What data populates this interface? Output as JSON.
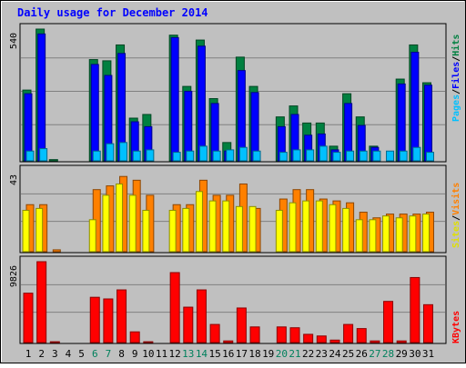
{
  "chart_data": [
    {
      "type": "bar",
      "title": "Daily usage for December 2014",
      "panel": "hits",
      "x": [
        1,
        2,
        3,
        4,
        5,
        6,
        7,
        8,
        9,
        10,
        11,
        12,
        13,
        14,
        15,
        16,
        17,
        18,
        19,
        20,
        21,
        22,
        23,
        24,
        25,
        26,
        27,
        28,
        29,
        30,
        31
      ],
      "weekend_days": [
        6,
        7,
        13,
        14,
        20,
        21,
        27,
        28
      ],
      "ymax_label": "540",
      "ylim": [
        0,
        540
      ],
      "series": [
        {
          "name": "Hits",
          "color": "#008040",
          "values": [
            290,
            540,
            5,
            0,
            0,
            415,
            410,
            475,
            175,
            190,
            0,
            515,
            305,
            495,
            255,
            75,
            425,
            305,
            0,
            180,
            225,
            155,
            155,
            60,
            275,
            180,
            60,
            0,
            335,
            475,
            320
          ]
        },
        {
          "name": "Files",
          "color": "#0000ff",
          "values": [
            275,
            520,
            0,
            0,
            0,
            395,
            350,
            440,
            160,
            140,
            0,
            505,
            285,
            470,
            235,
            40,
            370,
            280,
            0,
            140,
            190,
            105,
            110,
            45,
            235,
            145,
            55,
            0,
            315,
            445,
            310
          ]
        },
        {
          "name": "Pages",
          "color": "#00c0ff",
          "values": [
            40,
            50,
            0,
            0,
            0,
            40,
            70,
            75,
            40,
            45,
            0,
            35,
            40,
            60,
            40,
            45,
            55,
            40,
            0,
            35,
            45,
            45,
            60,
            35,
            40,
            40,
            40,
            40,
            40,
            55,
            35
          ]
        }
      ],
      "legend": [
        "Pages",
        "/",
        "Files",
        "/",
        "Hits"
      ]
    },
    {
      "type": "bar",
      "panel": "visits",
      "ymax_label": "43",
      "ylim": [
        0,
        43
      ],
      "series": [
        {
          "name": "Visits",
          "color": "#ff8000",
          "values": [
            25,
            25,
            1,
            0,
            0,
            33,
            35,
            40,
            38,
            30,
            0,
            25,
            25,
            38,
            30,
            30,
            36,
            23,
            0,
            28,
            33,
            33,
            28,
            27,
            26,
            21,
            18,
            20,
            20,
            20,
            21
          ]
        },
        {
          "name": "Sites",
          "color": "#ffff00",
          "values": [
            22,
            23,
            0,
            0,
            0,
            17,
            30,
            36,
            30,
            22,
            0,
            22,
            23,
            32,
            27,
            27,
            24,
            24,
            0,
            22,
            26,
            27,
            27,
            25,
            23,
            17,
            17,
            19,
            18,
            19,
            20
          ]
        }
      ],
      "legend": [
        "Sites",
        "/",
        "Visits"
      ]
    },
    {
      "type": "bar",
      "panel": "kbytes",
      "ymax_label": "9826",
      "ylim": [
        0,
        9826
      ],
      "series": [
        {
          "name": "KBytes",
          "color": "#ff0000",
          "values": [
            6000,
            9826,
            100,
            0,
            0,
            5500,
            5300,
            6400,
            1300,
            100,
            0,
            8500,
            4300,
            6400,
            2200,
            200,
            4200,
            1900,
            0,
            1900,
            1800,
            1000,
            800,
            300,
            2200,
            1700,
            200,
            5000,
            200,
            7900,
            4600
          ]
        }
      ],
      "legend": [
        "KBytes"
      ]
    }
  ],
  "colors": {
    "background": "#c0c0c0",
    "weekday_label": "#000000",
    "weekend_label": "#00805c",
    "title": "#0000ff"
  }
}
